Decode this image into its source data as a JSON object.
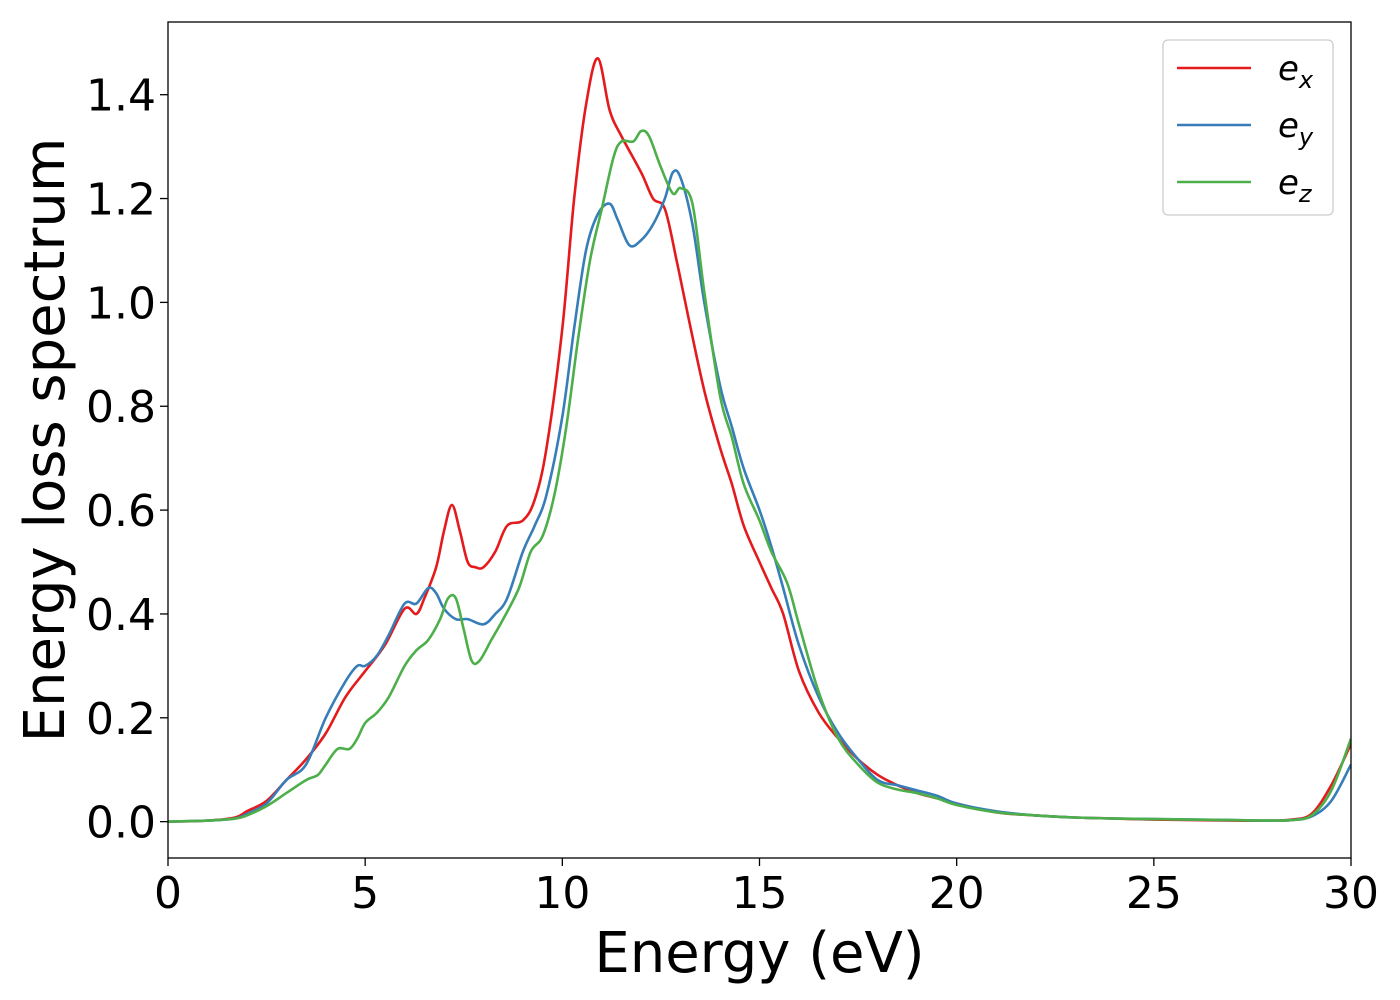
{
  "chart_data": {
    "type": "line",
    "title": "",
    "xlabel": "Energy (eV)",
    "ylabel": "Energy loss spectrum",
    "xlim": [
      0,
      30
    ],
    "ylim": [
      -0.07,
      1.54
    ],
    "xticks": [
      0,
      5,
      10,
      15,
      20,
      25,
      30
    ],
    "yticks": [
      0.0,
      0.2,
      0.4,
      0.6,
      0.8,
      1.0,
      1.2,
      1.4
    ],
    "xtick_labels": [
      "0",
      "5",
      "10",
      "15",
      "20",
      "25",
      "30"
    ],
    "ytick_labels": [
      "0.0",
      "0.2",
      "0.4",
      "0.6",
      "0.8",
      "1.0",
      "1.2",
      "1.4"
    ],
    "grid": false,
    "legend_position": "top-right",
    "series": [
      {
        "name": "e_x",
        "base": "e",
        "sub": "x",
        "color": "#e41a1c",
        "x": [
          0,
          1,
          1.7,
          2,
          2.5,
          3,
          3.5,
          4,
          4.5,
          5,
          5.5,
          6,
          6.3,
          6.5,
          6.8,
          7,
          7.2,
          7.4,
          7.6,
          7.8,
          8,
          8.3,
          8.6,
          9,
          9.3,
          9.6,
          10,
          10.3,
          10.6,
          10.9,
          11.2,
          11.5,
          12,
          12.3,
          12.6,
          12.9,
          13.2,
          13.6,
          14,
          14.3,
          14.6,
          15,
          15.3,
          15.6,
          16,
          16.5,
          17,
          17.5,
          18,
          18.5,
          19,
          19.5,
          20,
          21,
          22,
          23,
          24,
          25,
          26,
          27,
          28,
          28.5,
          29,
          29.5,
          30
        ],
        "y": [
          0,
          0.002,
          0.008,
          0.02,
          0.04,
          0.08,
          0.12,
          0.17,
          0.24,
          0.29,
          0.34,
          0.41,
          0.4,
          0.43,
          0.49,
          0.56,
          0.61,
          0.56,
          0.5,
          0.49,
          0.49,
          0.52,
          0.57,
          0.58,
          0.62,
          0.72,
          0.95,
          1.2,
          1.38,
          1.47,
          1.37,
          1.32,
          1.25,
          1.2,
          1.18,
          1.08,
          0.97,
          0.83,
          0.72,
          0.65,
          0.57,
          0.5,
          0.45,
          0.4,
          0.29,
          0.21,
          0.16,
          0.12,
          0.09,
          0.07,
          0.055,
          0.045,
          0.035,
          0.018,
          0.012,
          0.008,
          0.006,
          0.004,
          0.003,
          0.002,
          0.002,
          0.004,
          0.015,
          0.07,
          0.15
        ]
      },
      {
        "name": "e_y",
        "base": "e",
        "sub": "y",
        "color": "#377eb8",
        "x": [
          0,
          1,
          1.7,
          2,
          2.5,
          3,
          3.5,
          4,
          4.5,
          4.8,
          5,
          5.3,
          5.6,
          6,
          6.3,
          6.6,
          6.8,
          7,
          7.3,
          7.6,
          8,
          8.3,
          8.6,
          9,
          9.3,
          9.6,
          10,
          10.3,
          10.6,
          10.9,
          11.2,
          11.4,
          11.7,
          12,
          12.3,
          12.6,
          12.8,
          13,
          13.3,
          13.6,
          14,
          14.3,
          14.6,
          15,
          15.3,
          15.6,
          16,
          16.5,
          17,
          17.5,
          18,
          18.5,
          19,
          19.5,
          20,
          21,
          22,
          23,
          24,
          25,
          26,
          27,
          28,
          28.5,
          29,
          29.5,
          30
        ],
        "y": [
          0,
          0.002,
          0.006,
          0.015,
          0.035,
          0.08,
          0.11,
          0.2,
          0.27,
          0.3,
          0.3,
          0.32,
          0.36,
          0.42,
          0.42,
          0.45,
          0.44,
          0.41,
          0.39,
          0.39,
          0.38,
          0.4,
          0.43,
          0.52,
          0.57,
          0.63,
          0.78,
          0.95,
          1.1,
          1.17,
          1.19,
          1.16,
          1.11,
          1.12,
          1.15,
          1.2,
          1.25,
          1.24,
          1.15,
          1.0,
          0.84,
          0.76,
          0.68,
          0.6,
          0.53,
          0.45,
          0.34,
          0.24,
          0.17,
          0.12,
          0.08,
          0.07,
          0.06,
          0.05,
          0.035,
          0.02,
          0.012,
          0.008,
          0.006,
          0.005,
          0.004,
          0.003,
          0.002,
          0.003,
          0.01,
          0.04,
          0.11
        ]
      },
      {
        "name": "e_z",
        "base": "e",
        "sub": "z",
        "color": "#4daf4a",
        "x": [
          0,
          1,
          1.7,
          2,
          2.5,
          3,
          3.5,
          3.8,
          4,
          4.3,
          4.6,
          4.8,
          5,
          5.3,
          5.6,
          6,
          6.3,
          6.6,
          6.9,
          7.1,
          7.3,
          7.5,
          7.7,
          7.9,
          8.2,
          8.5,
          8.9,
          9.2,
          9.5,
          9.8,
          10.1,
          10.4,
          10.7,
          11,
          11.3,
          11.5,
          11.8,
          12,
          12.2,
          12.5,
          12.8,
          13,
          13.3,
          13.6,
          14,
          14.3,
          14.6,
          15,
          15.3,
          15.7,
          16,
          16.5,
          17,
          17.5,
          18,
          18.5,
          19,
          19.5,
          20,
          21,
          22,
          23,
          24,
          25,
          26,
          27,
          28,
          28.5,
          29,
          29.5,
          30
        ],
        "y": [
          0,
          0.002,
          0.006,
          0.012,
          0.03,
          0.055,
          0.08,
          0.09,
          0.11,
          0.14,
          0.14,
          0.16,
          0.19,
          0.21,
          0.24,
          0.3,
          0.33,
          0.35,
          0.39,
          0.43,
          0.43,
          0.37,
          0.31,
          0.31,
          0.35,
          0.39,
          0.45,
          0.52,
          0.55,
          0.63,
          0.76,
          0.93,
          1.08,
          1.18,
          1.28,
          1.31,
          1.31,
          1.33,
          1.32,
          1.26,
          1.21,
          1.22,
          1.19,
          1.02,
          0.82,
          0.74,
          0.65,
          0.58,
          0.52,
          0.46,
          0.38,
          0.25,
          0.16,
          0.11,
          0.075,
          0.062,
          0.055,
          0.045,
          0.032,
          0.018,
          0.012,
          0.008,
          0.006,
          0.005,
          0.004,
          0.003,
          0.002,
          0.003,
          0.012,
          0.06,
          0.16
        ]
      }
    ]
  }
}
